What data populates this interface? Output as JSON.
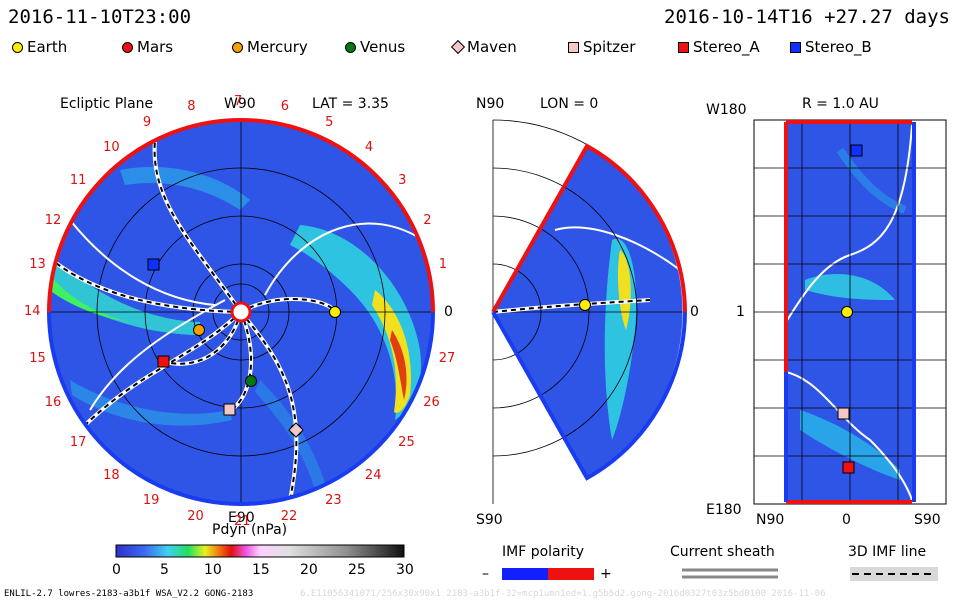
{
  "header": {
    "left_time": "2016-11-10T23:00",
    "right_time": "2016-10-14T16 +27.27 days"
  },
  "legend": [
    {
      "label": "Earth",
      "color": "#ffee00",
      "shape": "circle"
    },
    {
      "label": "Mars",
      "color": "#ee1111",
      "shape": "circle"
    },
    {
      "label": "Mercury",
      "color": "#f7a000",
      "shape": "circle"
    },
    {
      "label": "Venus",
      "color": "#007a10",
      "shape": "circle"
    },
    {
      "label": "Maven",
      "color": "#f5c6c6",
      "shape": "diamond"
    },
    {
      "label": "Spitzer",
      "color": "#f5c6c6",
      "shape": "square"
    },
    {
      "label": "Stereo_A",
      "color": "#ee1111",
      "shape": "square"
    },
    {
      "label": "Stereo_B",
      "color": "#1030ff",
      "shape": "square"
    }
  ],
  "ecliptic": {
    "title": "Ecliptic Plane",
    "top_label": "W90",
    "bottom_label": "E90",
    "right_label": "0",
    "lat_label": "LAT = 3.35",
    "sector_numbers": [
      "1",
      "2",
      "3",
      "4",
      "5",
      "6",
      "7",
      "8",
      "9",
      "10",
      "11",
      "12",
      "13",
      "14",
      "15",
      "16",
      "17",
      "18",
      "19",
      "20",
      "21",
      "22",
      "23",
      "24",
      "25",
      "26",
      "27"
    ]
  },
  "meridional": {
    "top_label": "N90",
    "bottom_label": "S90",
    "lon_label": "LON = 0",
    "right_label": "0"
  },
  "radial": {
    "title": "R = 1.0 AU",
    "top_left_label": "W180",
    "bottom_left_label": "E180",
    "mid_left_label": "1",
    "bottom_axis": [
      "N90",
      "0",
      "S90"
    ]
  },
  "colorbar": {
    "title": "Pdyn (nPa)",
    "ticks": [
      "0",
      "5",
      "10",
      "15",
      "20",
      "25",
      "30"
    ]
  },
  "bottom_legends": {
    "imf_polarity": "IMF polarity",
    "minus": "–",
    "plus": "+",
    "current_sheath": "Current sheath",
    "imf_line": "3D IMF line"
  },
  "footer": {
    "model": "ENLIL-2.7 lowres-2183-a3b1f WSA_V2.2 GONG-2183",
    "run_info": "6.E11056341071/256x30x90x1 2183-a3b1f-32=mcp1umn1ed=1.g5b5d2.gong-2016d0327t03z5bd0100 2016-11-06"
  }
}
